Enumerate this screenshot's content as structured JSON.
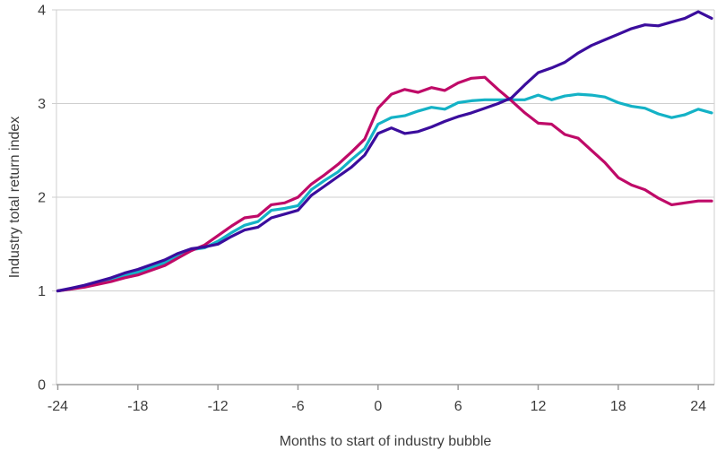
{
  "chart_data": {
    "type": "line",
    "title": "",
    "xlabel": "Months to start of industry bubble",
    "ylabel": "Industry total return index",
    "xlim": [
      -24.1,
      25.2
    ],
    "ylim": [
      0,
      4
    ],
    "x_ticks": [
      -24,
      -18,
      -12,
      -6,
      0,
      6,
      12,
      18,
      24
    ],
    "y_ticks": [
      0,
      1,
      2,
      3,
      4
    ],
    "grid": "horizontal-only",
    "legend": "none",
    "x": [
      -24,
      -23,
      -22,
      -21,
      -20,
      -19,
      -18,
      -17,
      -16,
      -15,
      -14,
      -13,
      -12,
      -11,
      -10,
      -9,
      -8,
      -7,
      -6,
      -5,
      -4,
      -3,
      -2,
      -1,
      0,
      1,
      2,
      3,
      4,
      5,
      6,
      7,
      8,
      9,
      10,
      11,
      12,
      13,
      14,
      15,
      16,
      17,
      18,
      19,
      20,
      21,
      22,
      23,
      24,
      25
    ],
    "series": [
      {
        "name": "cyan-line",
        "color": "#14b2c6",
        "values": [
          1.0,
          1.02,
          1.05,
          1.08,
          1.12,
          1.16,
          1.2,
          1.25,
          1.3,
          1.38,
          1.44,
          1.46,
          1.53,
          1.62,
          1.7,
          1.74,
          1.86,
          1.88,
          1.91,
          2.08,
          2.18,
          2.27,
          2.4,
          2.52,
          2.78,
          2.85,
          2.87,
          2.92,
          2.96,
          2.94,
          3.01,
          3.03,
          3.04,
          3.04,
          3.04,
          3.04,
          3.09,
          3.04,
          3.08,
          3.1,
          3.09,
          3.07,
          3.01,
          2.97,
          2.95,
          2.89,
          2.85,
          2.88,
          2.94,
          2.9
        ]
      },
      {
        "name": "magenta-line",
        "color": "#bf0a68",
        "values": [
          1.0,
          1.02,
          1.04,
          1.07,
          1.1,
          1.14,
          1.17,
          1.22,
          1.27,
          1.35,
          1.43,
          1.49,
          1.59,
          1.69,
          1.78,
          1.8,
          1.92,
          1.94,
          2.0,
          2.14,
          2.24,
          2.35,
          2.48,
          2.62,
          2.95,
          3.1,
          3.15,
          3.12,
          3.17,
          3.14,
          3.22,
          3.27,
          3.28,
          3.15,
          3.03,
          2.9,
          2.79,
          2.78,
          2.67,
          2.63,
          2.5,
          2.37,
          2.21,
          2.13,
          2.08,
          1.99,
          1.92,
          1.94,
          1.96,
          1.96
        ]
      },
      {
        "name": "dark-blue-line",
        "color": "#3b0d9d",
        "values": [
          1.0,
          1.03,
          1.06,
          1.1,
          1.14,
          1.19,
          1.23,
          1.28,
          1.33,
          1.4,
          1.45,
          1.47,
          1.5,
          1.58,
          1.65,
          1.68,
          1.78,
          1.82,
          1.86,
          2.02,
          2.12,
          2.22,
          2.32,
          2.45,
          2.68,
          2.74,
          2.68,
          2.7,
          2.75,
          2.81,
          2.86,
          2.9,
          2.95,
          3.0,
          3.06,
          3.2,
          3.33,
          3.38,
          3.44,
          3.54,
          3.62,
          3.68,
          3.74,
          3.8,
          3.84,
          3.83,
          3.87,
          3.91,
          3.98,
          3.91
        ]
      }
    ],
    "style": {
      "grid_color": "#cfcfcf",
      "border_color": "#cfcfcf",
      "axis_color": "#9b9b9b",
      "tick_color": "#9b9b9b",
      "label_color": "#3d3d3d",
      "background": "#ffffff",
      "line_width": 3.2
    }
  }
}
